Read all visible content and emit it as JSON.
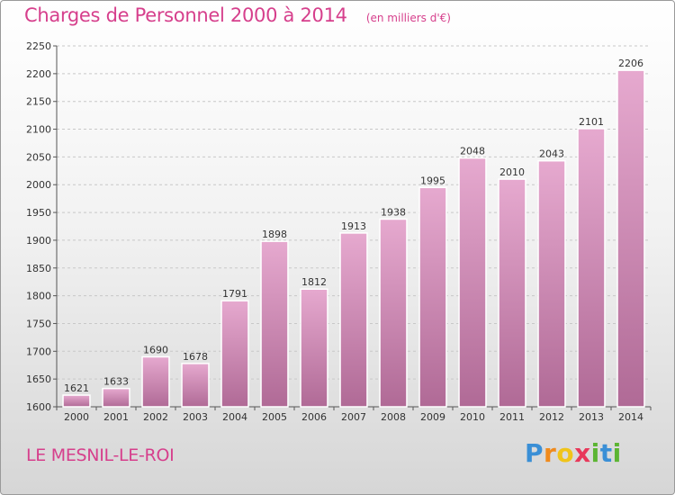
{
  "chart_data": {
    "type": "bar",
    "title": "Charges de Personnel 2000 à 2014",
    "subtitle": "(en milliers d'€)",
    "xlabel": "",
    "ylabel": "",
    "categories": [
      "2000",
      "2001",
      "2002",
      "2003",
      "2004",
      "2005",
      "2006",
      "2007",
      "2008",
      "2009",
      "2010",
      "2011",
      "2012",
      "2013",
      "2014"
    ],
    "values": [
      1621,
      1633,
      1690,
      1678,
      1791,
      1898,
      1812,
      1913,
      1938,
      1995,
      2048,
      2010,
      2043,
      2101,
      2206
    ],
    "ylim": [
      1600,
      2250
    ],
    "yticks": [
      1600,
      1650,
      1700,
      1750,
      1800,
      1850,
      1900,
      1950,
      2000,
      2050,
      2100,
      2150,
      2200,
      2250
    ],
    "grid": true,
    "bar_color": "#d98fbd"
  },
  "footer": {
    "town": "LE MESNIL-LE-ROI",
    "brand_letters": [
      "P",
      "r",
      "o",
      "x",
      "i",
      "t",
      "i"
    ],
    "brand_colors": [
      "#3a8fd6",
      "#f08a1c",
      "#f0c419",
      "#e8385a",
      "#5cb533",
      "#3a8fd6",
      "#5cb533"
    ]
  }
}
